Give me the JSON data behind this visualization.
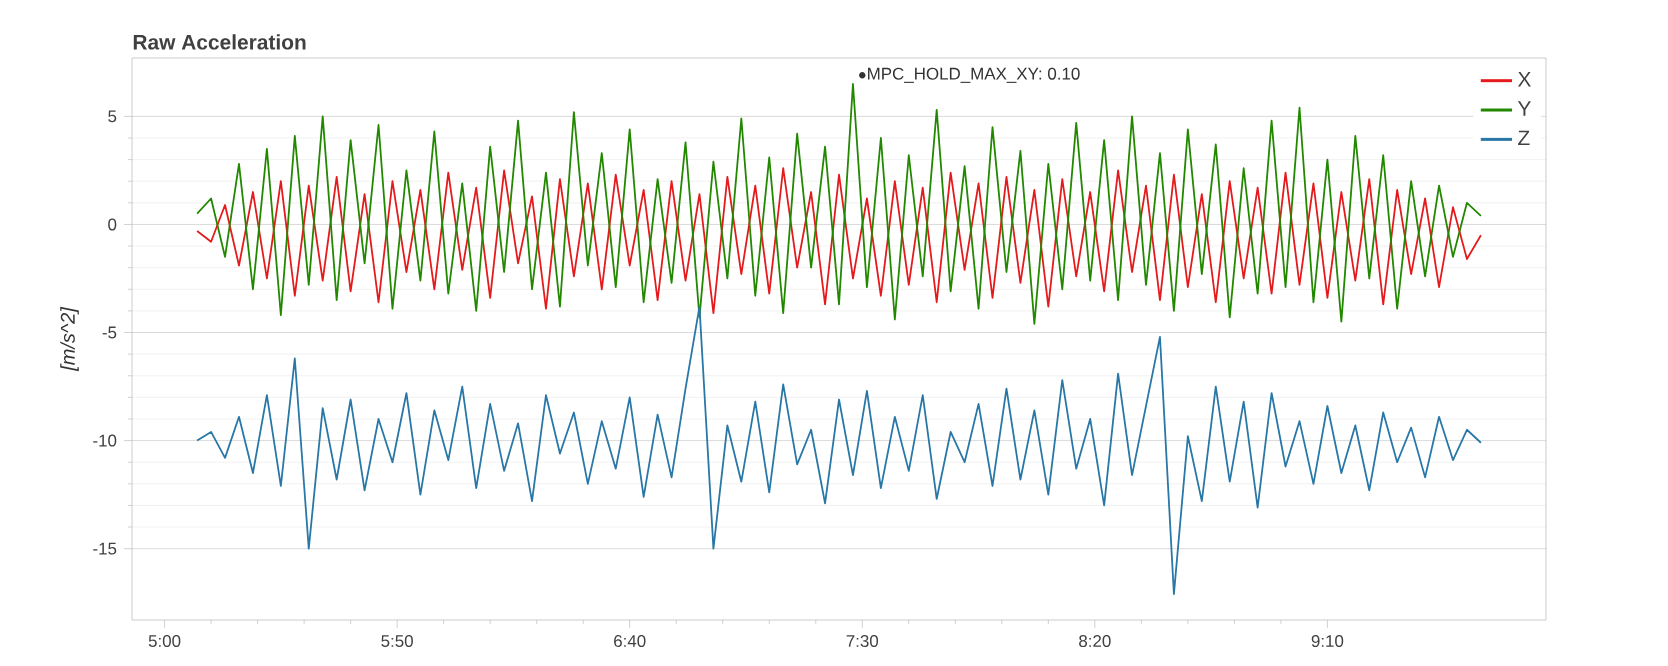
{
  "chart_data": {
    "type": "line",
    "title": "Raw Acceleration",
    "ylabel": "[m/s^2]",
    "x": [
      307,
      310,
      313,
      316,
      319,
      322,
      325,
      328,
      331,
      334,
      337,
      340,
      343,
      346,
      349,
      352,
      355,
      358,
      361,
      364,
      367,
      370,
      373,
      376,
      379,
      382,
      385,
      388,
      391,
      394,
      397,
      400,
      403,
      406,
      409,
      412,
      415,
      418,
      421,
      424,
      427,
      430,
      433,
      436,
      439,
      442,
      445,
      448,
      451,
      454,
      457,
      460,
      463,
      466,
      469,
      472,
      475,
      478,
      481,
      484,
      487,
      490,
      493,
      496,
      499,
      502,
      505,
      508,
      511,
      514,
      517,
      520,
      523,
      526,
      529,
      532,
      535,
      538,
      541,
      544,
      547,
      550,
      553,
      556,
      559,
      562,
      565,
      568,
      571,
      574,
      577,
      580,
      583
    ],
    "series": [
      {
        "name": "X",
        "color": "#e41a1c",
        "values": [
          -0.3,
          -0.8,
          0.9,
          -1.9,
          1.5,
          -2.5,
          2.0,
          -3.3,
          1.8,
          -2.6,
          2.2,
          -3.1,
          1.4,
          -3.6,
          2.0,
          -2.2,
          1.6,
          -3.0,
          2.4,
          -2.1,
          1.7,
          -3.4,
          2.5,
          -1.8,
          1.3,
          -3.9,
          2.1,
          -2.4,
          1.9,
          -3.0,
          2.3,
          -1.9,
          1.6,
          -3.5,
          2.0,
          -2.6,
          1.4,
          -4.1,
          2.2,
          -2.3,
          1.8,
          -3.2,
          2.6,
          -2.0,
          1.5,
          -3.7,
          2.3,
          -2.5,
          1.2,
          -3.3,
          2.0,
          -2.8,
          1.7,
          -3.6,
          2.4,
          -2.1,
          1.9,
          -3.4,
          2.2,
          -2.7,
          1.6,
          -3.8,
          2.1,
          -2.4,
          1.5,
          -3.1,
          2.5,
          -2.2,
          1.8,
          -3.5,
          2.3,
          -2.9,
          1.4,
          -3.6,
          2.0,
          -2.5,
          1.7,
          -3.2,
          2.4,
          -2.8,
          1.9,
          -3.4,
          1.5,
          -2.6,
          2.1,
          -3.7,
          1.6,
          -2.3,
          1.2,
          -2.9,
          0.8,
          -1.6,
          -0.5
        ]
      },
      {
        "name": "Y",
        "color": "#228800",
        "values": [
          0.5,
          1.2,
          -1.5,
          2.8,
          -3.0,
          3.5,
          -4.2,
          4.1,
          -2.8,
          5.0,
          -3.5,
          3.9,
          -1.8,
          4.6,
          -3.9,
          2.5,
          -2.6,
          4.3,
          -3.2,
          1.9,
          -4.0,
          3.6,
          -2.2,
          4.8,
          -3.0,
          2.4,
          -3.8,
          5.2,
          -1.9,
          3.3,
          -2.9,
          4.4,
          -3.6,
          2.1,
          -2.7,
          3.8,
          -4.3,
          2.9,
          -2.5,
          4.9,
          -3.3,
          3.1,
          -4.1,
          4.2,
          -2.0,
          3.6,
          -3.7,
          6.5,
          -2.9,
          4.0,
          -4.4,
          3.2,
          -2.4,
          5.3,
          -3.1,
          2.7,
          -3.9,
          4.5,
          -2.2,
          3.4,
          -4.6,
          2.8,
          -3.0,
          4.7,
          -2.6,
          3.9,
          -3.5,
          5.0,
          -2.8,
          3.3,
          -4.0,
          4.4,
          -2.3,
          3.7,
          -4.3,
          2.6,
          -3.2,
          4.8,
          -2.9,
          5.4,
          -3.6,
          3.0,
          -4.5,
          4.1,
          -2.5,
          3.2,
          -3.9,
          2.0,
          -2.4,
          1.8,
          -1.5,
          1.0,
          0.4
        ]
      },
      {
        "name": "Z",
        "color": "#2877a6",
        "values": [
          -10.0,
          -9.6,
          -10.8,
          -8.9,
          -11.5,
          -7.9,
          -12.1,
          -6.2,
          -15.0,
          -8.5,
          -11.8,
          -8.1,
          -12.3,
          -9.0,
          -11.0,
          -7.8,
          -12.5,
          -8.6,
          -10.9,
          -7.5,
          -12.2,
          -8.3,
          -11.4,
          -9.2,
          -12.8,
          -7.9,
          -10.6,
          -8.7,
          -12.0,
          -9.1,
          -11.3,
          -8.0,
          -12.6,
          -8.8,
          -11.7,
          -7.6,
          -3.8,
          -15.0,
          -9.3,
          -11.9,
          -8.2,
          -12.4,
          -7.4,
          -11.1,
          -9.5,
          -12.9,
          -8.1,
          -11.6,
          -7.7,
          -12.2,
          -8.9,
          -11.4,
          -7.9,
          -12.7,
          -9.6,
          -11.0,
          -8.3,
          -12.1,
          -7.6,
          -11.8,
          -8.6,
          -12.5,
          -7.2,
          -11.3,
          -9.0,
          -13.0,
          -6.9,
          -11.6,
          -8.4,
          -5.2,
          -17.1,
          -9.8,
          -12.8,
          -7.5,
          -11.9,
          -8.2,
          -13.1,
          -7.8,
          -11.2,
          -9.1,
          -12.0,
          -8.4,
          -11.5,
          -9.3,
          -12.3,
          -8.7,
          -11.0,
          -9.4,
          -11.7,
          -8.9,
          -10.9,
          -9.5,
          -10.1
        ]
      }
    ],
    "xlim": [
      293,
      597
    ],
    "ylim": [
      -18.3,
      7.7
    ],
    "xticks": [
      {
        "value": 300,
        "label": "5:00"
      },
      {
        "value": 350,
        "label": "5:50"
      },
      {
        "value": 400,
        "label": "6:40"
      },
      {
        "value": 450,
        "label": "7:30"
      },
      {
        "value": 500,
        "label": "8:20"
      },
      {
        "value": 550,
        "label": "9:10"
      }
    ],
    "yticks": [
      -15,
      -10,
      -5,
      0,
      5
    ],
    "annotations": [
      {
        "text": "MPC_HOLD_MAX_XY: 0.10",
        "x": 450,
        "y": 6.9
      }
    ],
    "grid": "y",
    "legend": "top right",
    "marker": "none",
    "line_style": "solid"
  }
}
